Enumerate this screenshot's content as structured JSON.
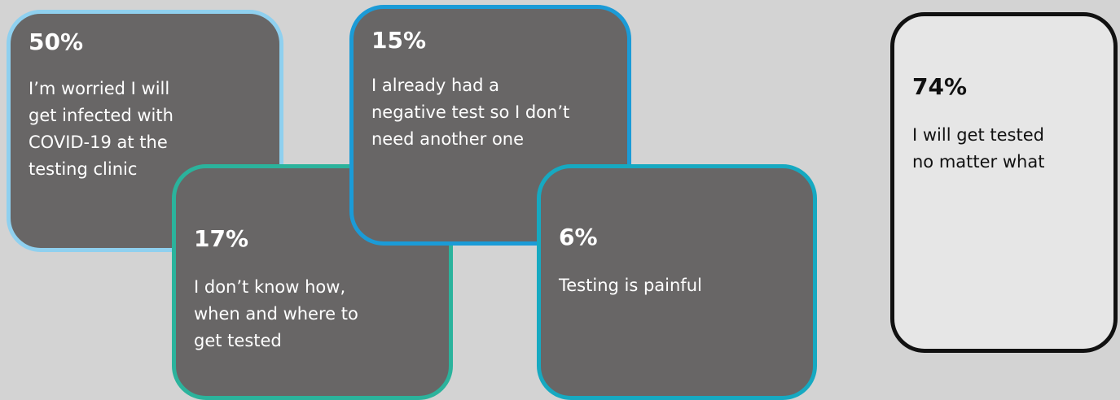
{
  "cards": [
    {
      "percent": "50%",
      "lines": [
        "I’m worried I will",
        "get infected with",
        "COVID-19 at the",
        "testing clinic"
      ]
    },
    {
      "percent": "17%",
      "lines": [
        "I don’t know how,",
        "when and where to",
        "get tested"
      ]
    },
    {
      "percent": "15%",
      "lines": [
        "I already had a",
        "negative test so I don’t",
        "need another one"
      ]
    },
    {
      "percent": "6%",
      "lines": [
        "Testing is painful"
      ]
    },
    {
      "percent": "74%",
      "lines": [
        "I will get tested",
        "no matter what"
      ]
    }
  ]
}
